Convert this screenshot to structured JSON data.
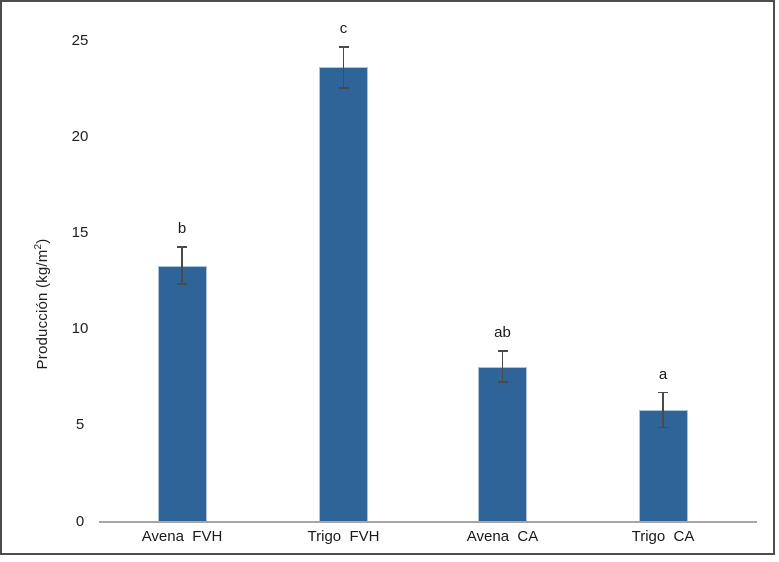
{
  "chart_data": {
    "type": "bar",
    "title": "",
    "categories": [
      "Avena  FVH",
      "Trigo  FVH",
      "Avena  CA",
      "Trigo  CA"
    ],
    "values": [
      13.3,
      23.6,
      8.05,
      5.8
    ],
    "error_bars": [
      1.0,
      1.1,
      0.85,
      0.95
    ],
    "bar_labels": [
      "b",
      "c",
      "ab",
      "a"
    ],
    "ylabel": "Producción (kg/m²)",
    "ylabel_prefix": "Producción (kg/m",
    "ylabel_sup": "2",
    "ylabel_suffix": ")",
    "xlabel": "",
    "yticks": [
      0,
      5,
      10,
      15,
      20,
      25
    ],
    "ylim": [
      0,
      25
    ],
    "grid": false,
    "legend": false,
    "bar_color": "#2f6498",
    "bar_edge_color": "#aec3d8",
    "axis_line_color": "#a6a6a6",
    "error_bar_color": "#4a4a4a",
    "frame_color": "#4d4d4d",
    "text_color": "#1a1a1a"
  }
}
